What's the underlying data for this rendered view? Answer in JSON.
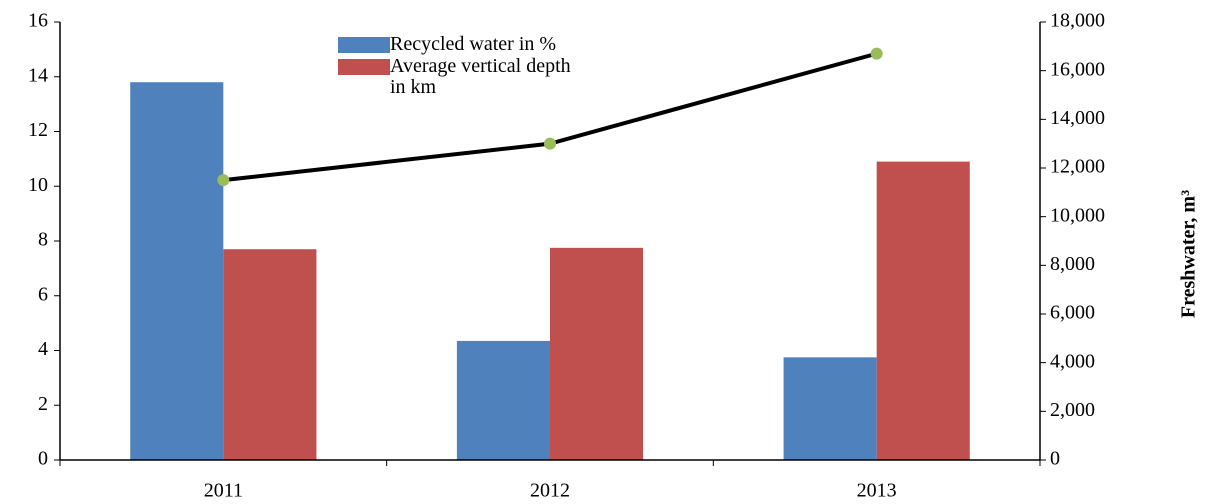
{
  "chart_data": {
    "type": "bar",
    "categories": [
      "2011",
      "2012",
      "2013"
    ],
    "series": [
      {
        "name": "Recycled water in %",
        "color": "#4f81bd",
        "values": [
          13.8,
          4.35,
          3.75
        ]
      },
      {
        "name": "Average vertical depth in km",
        "color": "#c0504d",
        "values": [
          7.7,
          7.75,
          10.9
        ]
      },
      {
        "type": "line",
        "axis": "y2",
        "color": "#000000",
        "marker_color": "#9bbb59",
        "values": [
          11500,
          13000,
          16700
        ]
      }
    ],
    "ylim": [
      0,
      16
    ],
    "yticks": [
      0,
      2,
      4,
      6,
      8,
      10,
      12,
      14,
      16
    ],
    "y2label": "Freshwater, m³",
    "y2lim": [
      0,
      18000
    ],
    "y2ticks": [
      {
        "value": 0,
        "label": "0"
      },
      {
        "value": 2000,
        "label": "2,000"
      },
      {
        "value": 4000,
        "label": "4,000"
      },
      {
        "value": 6000,
        "label": "6,000"
      },
      {
        "value": 8000,
        "label": "8,000"
      },
      {
        "value": 10000,
        "label": "10,000"
      },
      {
        "value": 12000,
        "label": "12,000"
      },
      {
        "value": 14000,
        "label": "14,000"
      },
      {
        "value": 16000,
        "label": "16,000"
      },
      {
        "value": 18000,
        "label": "18,000"
      }
    ],
    "grid": false
  }
}
